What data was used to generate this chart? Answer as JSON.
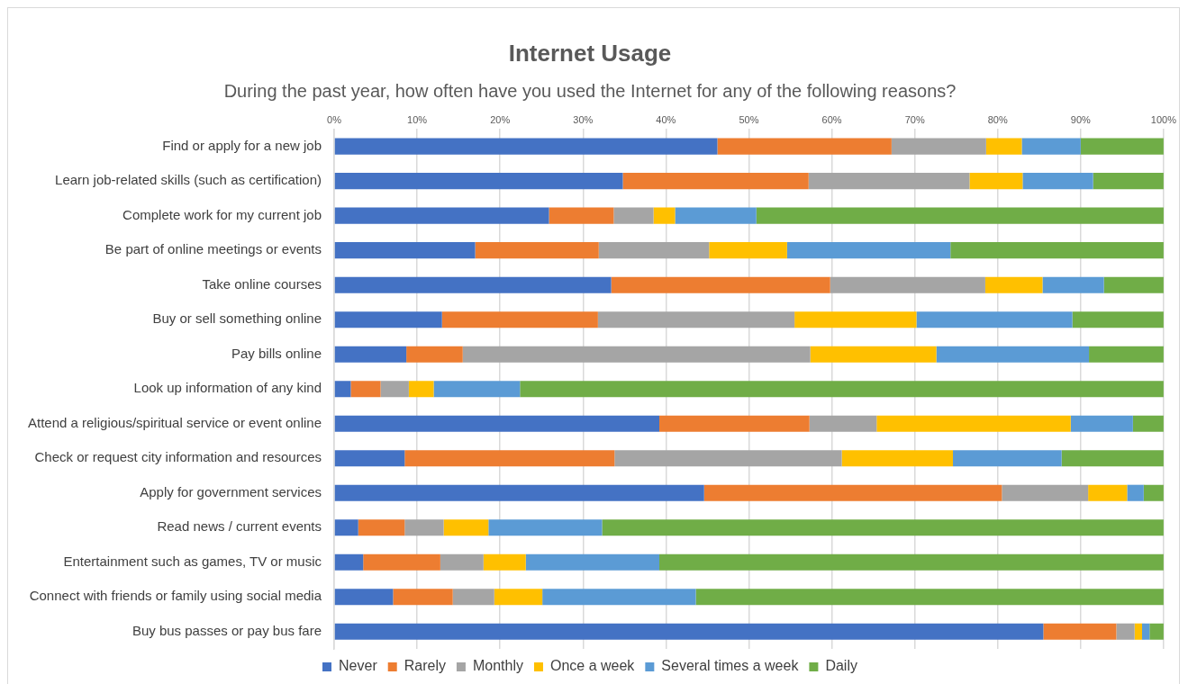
{
  "chart_data": {
    "type": "bar",
    "orientation": "horizontal",
    "stacked": true,
    "title": "Internet Usage",
    "subtitle": "During the past year, how often have you used the Internet for any of the following reasons?",
    "categories": [
      "Find or apply for a new job",
      "Learn job-related skills (such as certification)",
      "Complete work for my current job",
      "Be part of online meetings or events",
      "Take online courses",
      "Buy or sell something online",
      "Pay bills online",
      "Look up information of any kind",
      "Attend a religious/spiritual service or event online",
      "Check or request city information and resources",
      "Apply for government services",
      "Read news / current events",
      "Entertainment such as games, TV or music",
      "Connect with friends or family using social media",
      "Buy bus passes or pay bus fare"
    ],
    "series": [
      {
        "name": "Never",
        "color": "#4472c4",
        "values": [
          46.2,
          34.8,
          25.9,
          17.0,
          33.4,
          13.0,
          8.7,
          2.0,
          39.2,
          8.5,
          44.6,
          2.9,
          3.5,
          7.1,
          85.5
        ]
      },
      {
        "name": "Rarely",
        "color": "#ed7d31",
        "values": [
          21.0,
          22.4,
          7.8,
          14.9,
          26.4,
          18.8,
          6.8,
          3.6,
          18.1,
          25.3,
          35.9,
          5.6,
          9.3,
          7.2,
          8.8
        ]
      },
      {
        "name": "Monthly",
        "color": "#a5a5a5",
        "values": [
          11.4,
          19.4,
          4.8,
          13.3,
          18.7,
          23.7,
          41.9,
          3.4,
          8.1,
          27.4,
          10.4,
          4.7,
          5.2,
          5.0,
          2.2
        ]
      },
      {
        "name": "Once a week",
        "color": "#ffc000",
        "values": [
          4.3,
          6.4,
          2.6,
          9.4,
          6.9,
          14.7,
          15.2,
          3.0,
          23.4,
          13.4,
          4.7,
          5.4,
          5.1,
          5.8,
          0.9
        ]
      },
      {
        "name": "Several times a week",
        "color": "#5b9bd5",
        "values": [
          7.1,
          8.5,
          9.8,
          19.7,
          7.4,
          18.8,
          18.4,
          10.4,
          7.5,
          13.1,
          2.0,
          13.7,
          16.1,
          18.5,
          0.9
        ]
      },
      {
        "name": "Daily",
        "color": "#70ad47",
        "values": [
          10.0,
          8.5,
          49.2,
          25.7,
          7.2,
          11.0,
          9.0,
          77.6,
          3.7,
          12.3,
          2.4,
          67.7,
          60.8,
          56.4,
          1.7
        ]
      }
    ],
    "xlim": [
      0,
      100
    ],
    "xticks": [
      {
        "value": 0,
        "label": "0%"
      },
      {
        "value": 10,
        "label": "10%"
      },
      {
        "value": 20,
        "label": "20%"
      },
      {
        "value": 30,
        "label": "30%"
      },
      {
        "value": 40,
        "label": "40%"
      },
      {
        "value": 50,
        "label": "50%"
      },
      {
        "value": 60,
        "label": "60%"
      },
      {
        "value": 70,
        "label": "70%"
      },
      {
        "value": 80,
        "label": "80%"
      },
      {
        "value": 90,
        "label": "90%"
      },
      {
        "value": 100,
        "label": "100%"
      }
    ],
    "grid": "x",
    "legend": "bottom"
  }
}
